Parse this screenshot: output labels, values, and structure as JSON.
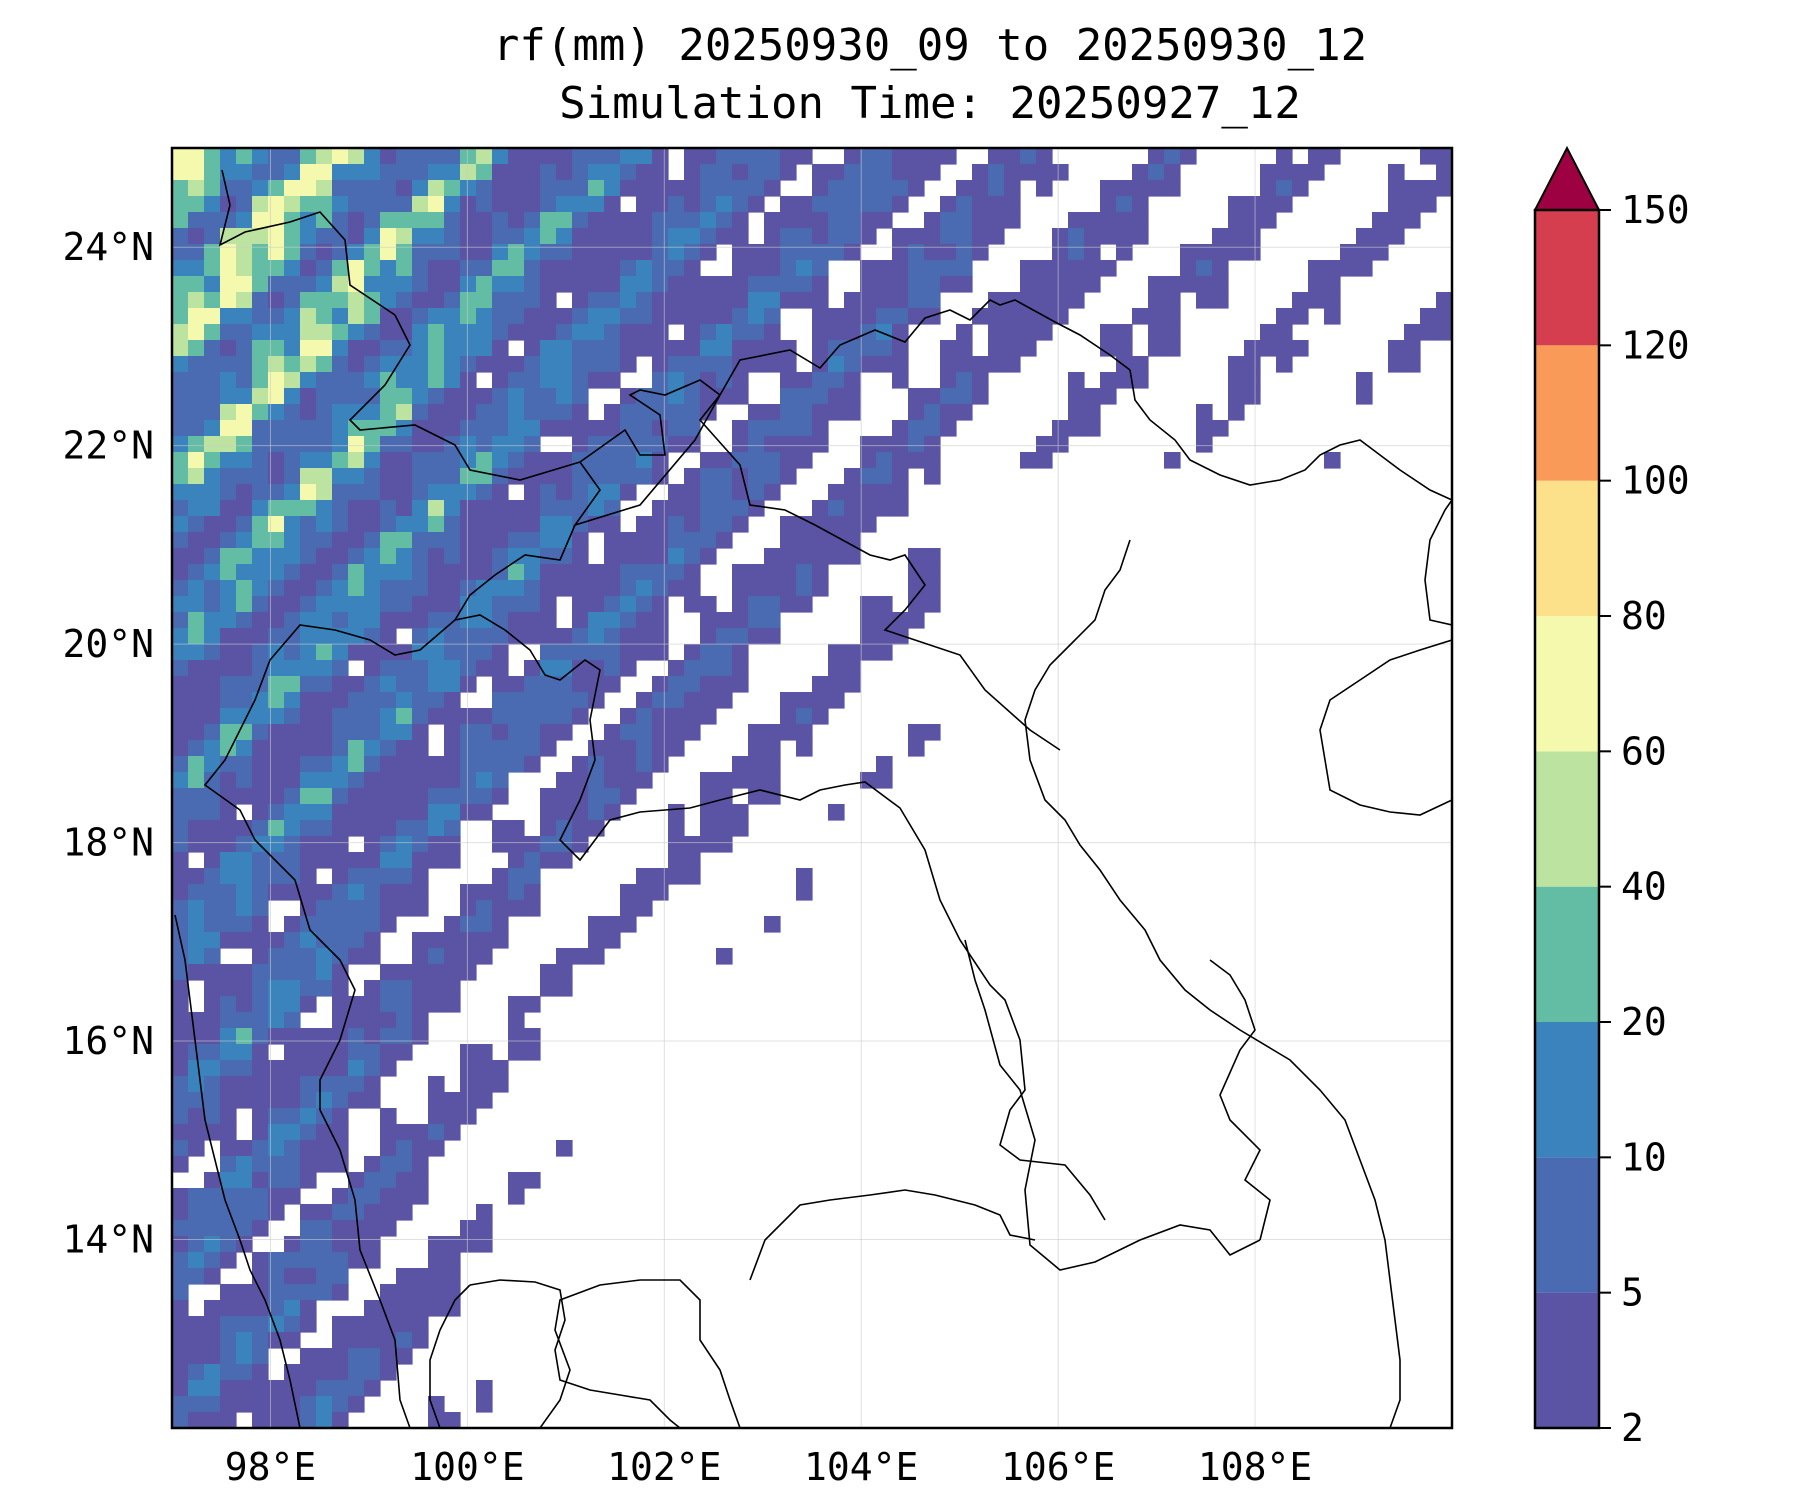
{
  "title": "rf(mm) 20250930_09 to 20250930_12",
  "subtitle": "Simulation Time: 20250927_12",
  "x_ticks": [
    {
      "value": 98,
      "label": "98°E"
    },
    {
      "value": 100,
      "label": "100°E"
    },
    {
      "value": 102,
      "label": "102°E"
    },
    {
      "value": 104,
      "label": "104°E"
    },
    {
      "value": 106,
      "label": "106°E"
    },
    {
      "value": 108,
      "label": "108°E"
    }
  ],
  "y_ticks": [
    {
      "value": 14,
      "label": "14°N"
    },
    {
      "value": 16,
      "label": "16°N"
    },
    {
      "value": 18,
      "label": "18°N"
    },
    {
      "value": 20,
      "label": "20°N"
    },
    {
      "value": 22,
      "label": "22°N"
    },
    {
      "value": 24,
      "label": "24°N"
    }
  ],
  "extent": {
    "lon": [
      97.0,
      110.0
    ],
    "lat": [
      12.1,
      25.0
    ]
  },
  "colorbar": {
    "levels": [
      {
        "value": 2,
        "label": "2"
      },
      {
        "value": 5,
        "label": "5"
      },
      {
        "value": 10,
        "label": "10"
      },
      {
        "value": 20,
        "label": "20"
      },
      {
        "value": 40,
        "label": "40"
      },
      {
        "value": 60,
        "label": "60"
      },
      {
        "value": 80,
        "label": "80"
      },
      {
        "value": 100,
        "label": "100"
      },
      {
        "value": 120,
        "label": "120"
      },
      {
        "value": 150,
        "label": "150"
      }
    ],
    "colors": [
      "#5b53a4",
      "#4a6ab1",
      "#3a83bd",
      "#63bda5",
      "#bde3a0",
      "#f5f9ae",
      "#fde08a",
      "#f99a58",
      "#d53e4f"
    ],
    "extend_color": "#9e0142"
  },
  "grid": true,
  "map_features": [
    "coastlines",
    "borders"
  ]
}
